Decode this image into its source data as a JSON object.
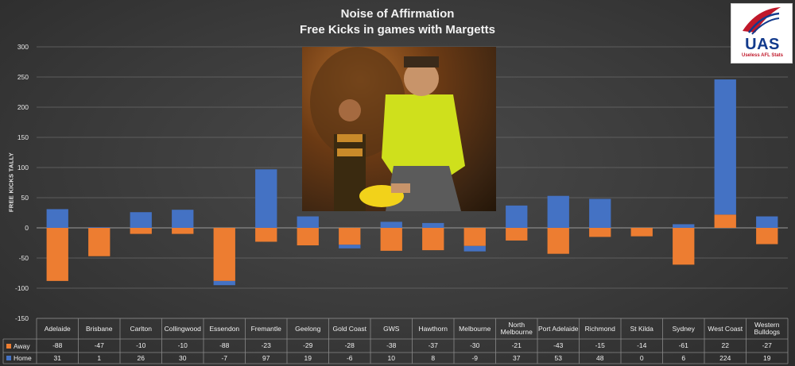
{
  "title": "Noise of Affirmation",
  "subtitle": "Free Kicks in games with Margetts",
  "logo": {
    "text": "UAS",
    "tagline": "Useless AFL Stats"
  },
  "colors": {
    "away": "#ed7d31",
    "home": "#4472c4",
    "grid": "#6a6a6a",
    "table_line": "#8a8a8a"
  },
  "chart_data": {
    "type": "bar",
    "stacked": true,
    "title": "Noise of Affirmation",
    "subtitle": "Free Kicks in games with Margetts",
    "xlabel": "",
    "ylabel": "FREE KICKS TALLY",
    "ylim": [
      -150,
      300
    ],
    "yticks": [
      300,
      250,
      200,
      150,
      100,
      50,
      0,
      -50,
      -100,
      -150
    ],
    "grid": true,
    "categories": [
      "Adelaide",
      "Brisbane",
      "Carlton",
      "Collingwood",
      "Essendon",
      "Fremantle",
      "Geelong",
      "Gold Coast",
      "GWS",
      "Hawthorn",
      "Melbourne",
      "North Melbourne",
      "Port Adelaide",
      "Richmond",
      "St Kilda",
      "Sydney",
      "West Coast",
      "Western Bulldogs"
    ],
    "series": [
      {
        "name": "Away",
        "values": [
          -88,
          -47,
          -10,
          -10,
          -88,
          -23,
          -29,
          -28,
          -38,
          -37,
          -30,
          -21,
          -43,
          -15,
          -14,
          -61,
          22,
          -27
        ]
      },
      {
        "name": "Home",
        "values": [
          31,
          1,
          26,
          30,
          -7,
          97,
          19,
          -6,
          10,
          8,
          -9,
          37,
          53,
          48,
          0,
          6,
          224,
          19
        ]
      }
    ],
    "data_table": true
  }
}
